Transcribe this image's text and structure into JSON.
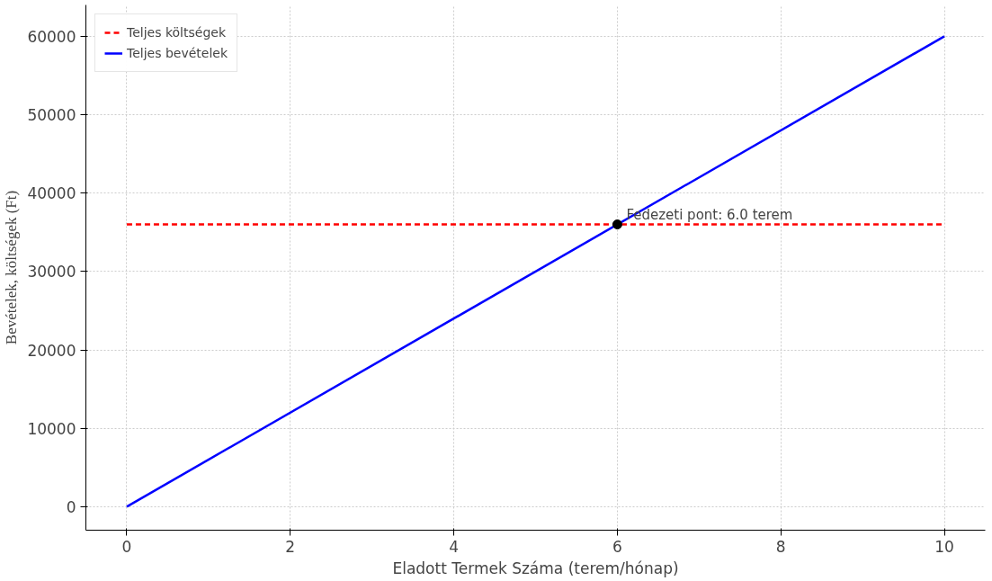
{
  "chart_data": {
    "type": "line",
    "xlabel": "Eladott Termek Száma (terem/hónap)",
    "ylabel": "Bevételek, költségek (Ft)",
    "xlim": [
      -0.5,
      10.5
    ],
    "ylim": [
      -3000,
      64000
    ],
    "xticks": [
      0,
      2,
      4,
      6,
      8,
      10
    ],
    "yticks": [
      0,
      10000,
      20000,
      30000,
      40000,
      50000,
      60000
    ],
    "grid": true,
    "legend": "top left",
    "series": [
      {
        "name": "Teljes költségek",
        "color": "#ff0000",
        "x": [
          0,
          10
        ],
        "values": [
          36000,
          36000
        ],
        "line_style": "dashed",
        "marker": "none"
      },
      {
        "name": "Teljes bevételek",
        "color": "#0000ff",
        "x": [
          0,
          10
        ],
        "values": [
          0,
          60000
        ],
        "line_style": "solid",
        "marker": "none"
      },
      {
        "type": "scatter",
        "color": "#000000",
        "x": [
          6
        ],
        "values": [
          36000
        ],
        "marker": "circle"
      }
    ],
    "annotations": [
      {
        "text": "Fedezeti pont: 6.0 terem",
        "x": 6,
        "y": 36000
      }
    ]
  }
}
